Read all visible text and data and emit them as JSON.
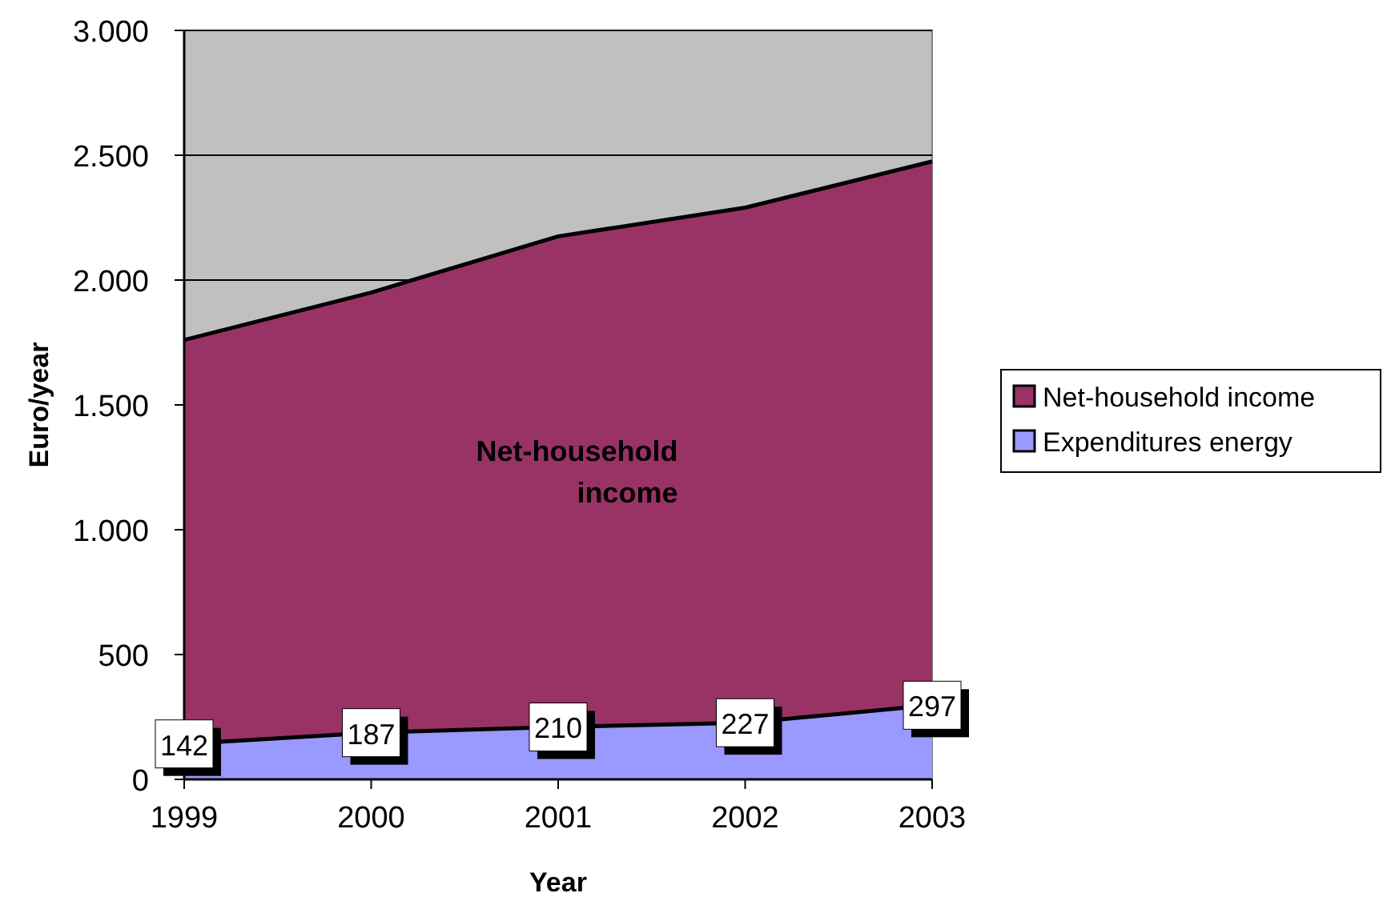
{
  "chart_data": {
    "type": "area",
    "xlabel": "Year",
    "ylabel": "Euro/year",
    "categories": [
      "1999",
      "2000",
      "2001",
      "2002",
      "2003"
    ],
    "series": [
      {
        "name": "Net-household income",
        "color": "#993366",
        "values": [
          1760,
          1950,
          2175,
          2290,
          2475
        ]
      },
      {
        "name": "Expenditures energy",
        "color": "#9999ff",
        "values": [
          142,
          187,
          210,
          227,
          297
        ],
        "value_labels": [
          "142",
          "187",
          "210",
          "227",
          "297"
        ]
      }
    ],
    "ylim": [
      0,
      3000
    ],
    "yticks": [
      0,
      500,
      {
        "value": 1000,
        "label": "1.000"
      },
      {
        "value": 1500,
        "label": "1.500"
      },
      {
        "value": 2000,
        "label": "2.000"
      },
      {
        "value": 2500,
        "label": "2.500"
      },
      {
        "value": 3000,
        "label": "3.000"
      }
    ],
    "grid": "y",
    "legend": "right",
    "annotations": [
      "Net-household income"
    ]
  }
}
